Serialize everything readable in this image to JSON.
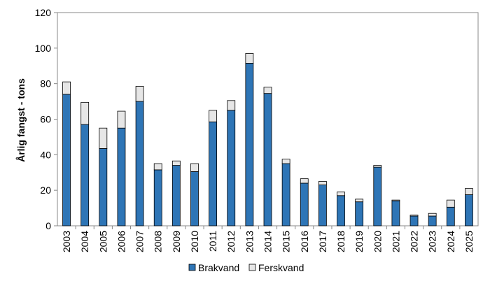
{
  "chart_data": {
    "type": "bar",
    "stacked": true,
    "title": "",
    "xlabel": "",
    "ylabel": "Årlig fangst - tons",
    "ylim": [
      0,
      120
    ],
    "yticks": [
      0,
      20,
      40,
      60,
      80,
      100,
      120
    ],
    "grid": false,
    "legend_position": "bottom",
    "categories": [
      "2003",
      "2004",
      "2005",
      "2006",
      "2007",
      "2008",
      "2009",
      "2010",
      "2011",
      "2012",
      "2013",
      "2014",
      "2015",
      "2016",
      "2017",
      "2018",
      "2019",
      "2020",
      "2021",
      "2022",
      "2023",
      "2024",
      "2025"
    ],
    "series": [
      {
        "name": "Brakvand",
        "color": "#2E75B6",
        "values": [
          74,
          57,
          43.5,
          55,
          70,
          31.5,
          34,
          30.5,
          58.5,
          65,
          91.5,
          74.5,
          35,
          24,
          23,
          17,
          13.5,
          33,
          14,
          5.5,
          5.5,
          10.5,
          17.5
        ]
      },
      {
        "name": "Ferskvand",
        "color": "#E6E6E6",
        "values": [
          7,
          12.5,
          11.5,
          9.5,
          8.5,
          3.5,
          2.5,
          4.5,
          6.5,
          5.5,
          5.5,
          3.5,
          2.5,
          2.5,
          2,
          2,
          1.5,
          1,
          0.5,
          0.5,
          1.5,
          4,
          3.5
        ]
      }
    ]
  }
}
